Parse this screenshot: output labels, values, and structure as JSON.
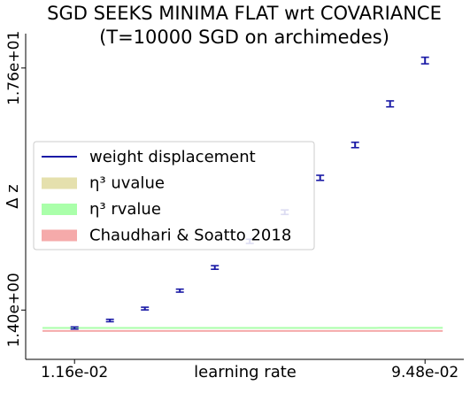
{
  "chart_data": {
    "type": "line",
    "title_line1": "SGD SEEKS MINIMA FLAT wrt COVARIANCE",
    "title_line2": "(T=10000 SGD on archimedes)",
    "xlabel": "learning rate",
    "ylabel": "Δ z",
    "x_ticks": [
      {
        "label": "1.16e-02",
        "value": 0.0116
      },
      {
        "label": "9.48e-02",
        "value": 0.0948
      }
    ],
    "y_ticks": [
      {
        "label": "1.40e+00",
        "value": 1.4
      },
      {
        "label": "1.76e+01",
        "value": 17.6
      }
    ],
    "xlim": [
      0.0,
      0.104
    ],
    "ylim": [
      -1.9,
      19.9
    ],
    "legend_position": "center-left",
    "series": [
      {
        "name": "weight displacement",
        "kind": "errorbar",
        "color": "#1a1aa6",
        "x": [
          0.0116,
          0.02,
          0.0283,
          0.0366,
          0.0449,
          0.0532,
          0.0615,
          0.0699,
          0.0782,
          0.0865,
          0.0948
        ],
        "y": [
          0.2,
          0.7,
          1.5,
          2.7,
          4.25,
          6.0,
          7.95,
          10.25,
          12.45,
          15.2,
          18.1
        ],
        "err": [
          0.07,
          0.08,
          0.09,
          0.1,
          0.12,
          0.14,
          0.15,
          0.17,
          0.18,
          0.2,
          0.22
        ]
      },
      {
        "name": "η³ uvalue",
        "kind": "curve",
        "color": "#e5e0ad",
        "coef": 4050,
        "x_range": [
          0.004,
          0.015
        ]
      },
      {
        "name": "η³ rvalue",
        "kind": "curve",
        "color": "#aaffaa",
        "coef": 18.2,
        "x_range": [
          0.004,
          0.099
        ]
      },
      {
        "name": "Chaudhari & Soatto 2018",
        "kind": "hline",
        "color": "#f5aaaa",
        "y": 0.0,
        "x_range": [
          0.004,
          0.099
        ]
      }
    ]
  }
}
